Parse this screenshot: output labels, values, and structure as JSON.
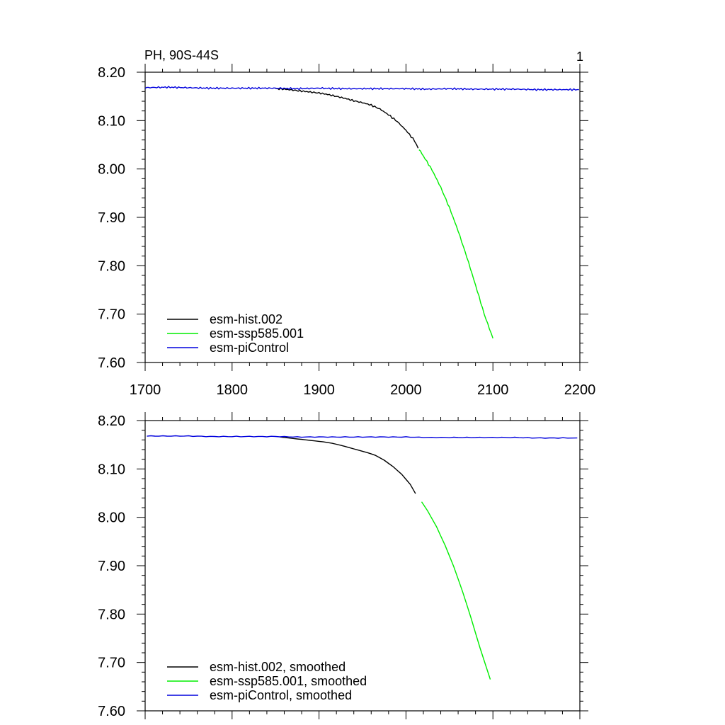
{
  "colors": {
    "hist": "#000000",
    "ssp585": "#00ee00",
    "piControl": "#0000dd"
  },
  "chart_data": [
    {
      "type": "line",
      "panel": "top",
      "title": "PH, 90S-44S",
      "corner_label": "1",
      "xlim": [
        1700,
        2200
      ],
      "ylim": [
        7.6,
        8.2
      ],
      "x_ticks": [
        "1700",
        "1800",
        "1900",
        "2000",
        "2100",
        "2200"
      ],
      "y_ticks": [
        "7.60",
        "7.70",
        "7.80",
        "7.90",
        "8.00",
        "8.10",
        "8.20"
      ],
      "legend_position": "bottom-left",
      "series": [
        {
          "key": "hist",
          "name": "esm-hist.002",
          "color": "#000000",
          "x": [
            1850,
            1860,
            1870,
            1880,
            1890,
            1900,
            1910,
            1920,
            1930,
            1940,
            1950,
            1960,
            1970,
            1980,
            1990,
            2000,
            2010,
            2014
          ],
          "y": [
            8.166,
            8.165,
            8.163,
            8.161,
            8.159,
            8.157,
            8.154,
            8.15,
            8.146,
            8.141,
            8.137,
            8.132,
            8.124,
            8.112,
            8.098,
            8.08,
            8.058,
            8.043
          ]
        },
        {
          "key": "ssp585",
          "name": "esm-ssp585.001",
          "color": "#00ee00",
          "x": [
            2015,
            2020,
            2030,
            2040,
            2050,
            2060,
            2070,
            2080,
            2090,
            2100
          ],
          "y": [
            8.04,
            8.027,
            7.998,
            7.962,
            7.92,
            7.872,
            7.818,
            7.76,
            7.7,
            7.65
          ]
        },
        {
          "key": "piControl",
          "name": "esm-piControl",
          "color": "#0000dd",
          "x": [
            1700,
            1725,
            1750,
            1775,
            1800,
            1825,
            1850,
            1875,
            1900,
            1925,
            1950,
            1975,
            2000,
            2025,
            2050,
            2075,
            2100,
            2125,
            2150,
            2175,
            2199
          ],
          "y": [
            8.168,
            8.169,
            8.168,
            8.167,
            8.167,
            8.167,
            8.167,
            8.166,
            8.167,
            8.166,
            8.166,
            8.166,
            8.166,
            8.165,
            8.166,
            8.165,
            8.165,
            8.165,
            8.164,
            8.164,
            8.164
          ]
        }
      ]
    },
    {
      "type": "line",
      "panel": "bottom",
      "title": "",
      "xlim": [
        1700,
        2200
      ],
      "ylim": [
        7.6,
        8.2
      ],
      "y_ticks": [
        "7.60",
        "7.70",
        "7.80",
        "7.90",
        "8.00",
        "8.10",
        "8.20"
      ],
      "legend_position": "bottom-left",
      "series": [
        {
          "key": "hist",
          "name": "esm-hist.002, smoothed",
          "color": "#000000",
          "x": [
            1855,
            1865,
            1875,
            1885,
            1895,
            1905,
            1915,
            1925,
            1935,
            1945,
            1955,
            1965,
            1975,
            1985,
            1995,
            2005,
            2011
          ],
          "y": [
            8.166,
            8.164,
            8.162,
            8.16,
            8.158,
            8.156,
            8.153,
            8.149,
            8.144,
            8.139,
            8.134,
            8.128,
            8.118,
            8.105,
            8.089,
            8.068,
            8.049
          ]
        },
        {
          "key": "ssp585",
          "name": "esm-ssp585.001, smoothed",
          "color": "#00ee00",
          "x": [
            2018,
            2025,
            2035,
            2045,
            2055,
            2065,
            2075,
            2085,
            2097
          ],
          "y": [
            8.032,
            8.013,
            7.981,
            7.942,
            7.898,
            7.847,
            7.791,
            7.731,
            7.665
          ]
        },
        {
          "key": "piControl",
          "name": "esm-piControl, smoothed",
          "color": "#0000dd",
          "x": [
            1702,
            1725,
            1750,
            1775,
            1800,
            1825,
            1850,
            1875,
            1900,
            1925,
            1950,
            1975,
            2000,
            2025,
            2050,
            2075,
            2100,
            2125,
            2150,
            2175,
            2197
          ],
          "y": [
            8.168,
            8.168,
            8.168,
            8.167,
            8.167,
            8.167,
            8.167,
            8.166,
            8.166,
            8.166,
            8.166,
            8.166,
            8.166,
            8.165,
            8.165,
            8.165,
            8.165,
            8.165,
            8.164,
            8.164,
            8.164
          ]
        }
      ]
    }
  ]
}
